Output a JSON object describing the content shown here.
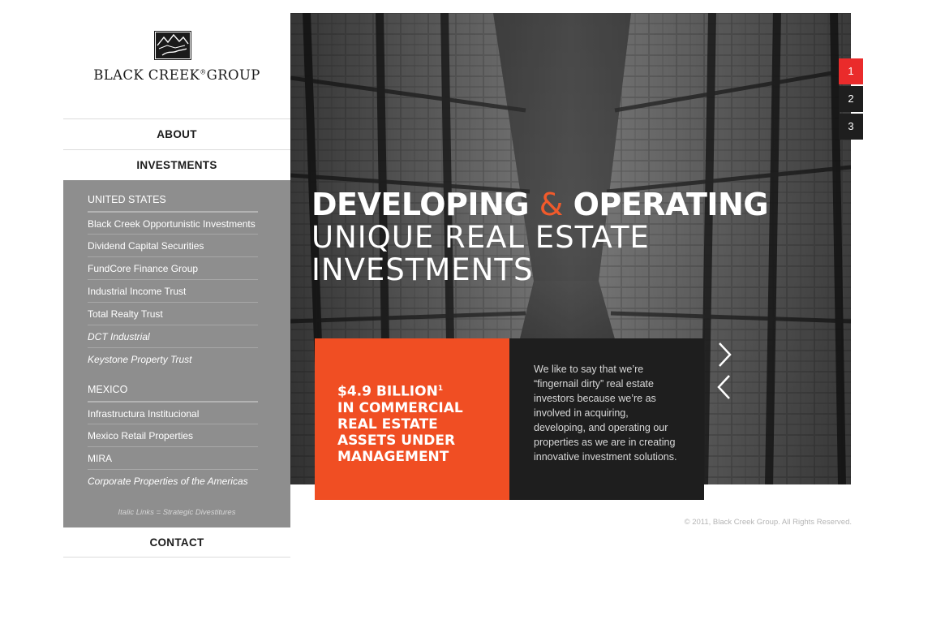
{
  "brand": {
    "name": "BLACK CREEK",
    "name_suffix": "GROUP",
    "reg_mark": "®",
    "logo_icon": "mountains-creek-logo"
  },
  "nav": {
    "about": "ABOUT",
    "investments": "INVESTMENTS",
    "contact": "CONTACT"
  },
  "investments_menu": {
    "us_heading": "UNITED STATES",
    "us_links": [
      {
        "label": "Black Creek Opportunistic Investments",
        "italic": false
      },
      {
        "label": "Dividend Capital Securities",
        "italic": false
      },
      {
        "label": "FundCore Finance Group",
        "italic": false
      },
      {
        "label": "Industrial Income Trust",
        "italic": false
      },
      {
        "label": "Total Realty Trust",
        "italic": false
      },
      {
        "label": "DCT Industrial",
        "italic": true
      },
      {
        "label": "Keystone Property Trust",
        "italic": true
      }
    ],
    "mexico_heading": "MEXICO",
    "mexico_links": [
      {
        "label": "Infrastructura Institucional",
        "italic": false
      },
      {
        "label": "Mexico Retail Properties",
        "italic": false
      },
      {
        "label": "MIRA",
        "italic": false
      },
      {
        "label": "Corporate Properties of the Americas",
        "italic": true
      }
    ],
    "note": "Italic Links = Strategic Divestitures"
  },
  "hero": {
    "headline_word1": "DEVELOPING",
    "headline_amp": "&",
    "headline_word2": "OPERATING",
    "subline1": "UNIQUE REAL ESTATE",
    "subline2": "INVESTMENTS",
    "stat_line1": "$4.9 BILLION",
    "stat_footnote": "1",
    "stat_line2": "IN COMMERCIAL",
    "stat_line3": "REAL ESTATE",
    "stat_line4": "ASSETS UNDER",
    "stat_line5": "MANAGEMENT",
    "blurb": "We like to say that we’re “fingernail dirty” real estate investors because we’re as involved in acquiring, developing, and operating our properties as we are in creating innovative investment solutions.",
    "next_icon": "chevron-right-icon",
    "prev_icon": "chevron-left-icon"
  },
  "pager": {
    "pages": [
      "1",
      "2",
      "3"
    ],
    "active_page": "1"
  },
  "footer": {
    "copyright": "© 2011, Black Creek Group. All Rights Reserved."
  },
  "colors": {
    "accent_orange": "#f04e23",
    "pager_active": "#ea2b2b",
    "submenu_bg": "#8e8e8e",
    "dark_panel": "#1e1e1e"
  }
}
